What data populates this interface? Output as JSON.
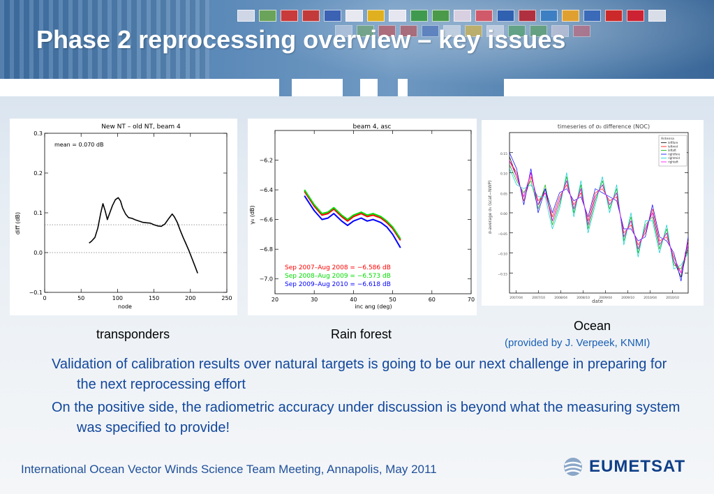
{
  "slide": {
    "title": "Phase 2 reprocessing overview – key issues",
    "flag_colors": [
      "#cfd6e6",
      "#6aa35a",
      "#c93a3a",
      "#c23a3a",
      "#3b62b3",
      "#e8e8f0",
      "#e0b020",
      "#e6e6f0",
      "#3f9a4f",
      "#4a9a4a",
      "#d8d0e0",
      "#d05a6a",
      "#3060b0",
      "#b03040",
      "#3d7fc2",
      "#e0a030",
      "#3b6ab8",
      "#cc2a2a",
      "#cc2233",
      "#d8dde8"
    ],
    "bullets": [
      "Validation of calibration results over natural targets is going to be our next challenge in preparing for the next reprocessing effort",
      "On the positive side, the radiometric accuracy under discussion is beyond what the measuring system was specified to provide!"
    ],
    "footer": "International Ocean Vector Winds Science Team Meeting, Annapolis, May 2011",
    "logo_text": "EUMETSAT",
    "colors": {
      "title": "#ffffff",
      "bullet_text": "#12479c",
      "footer_text": "#1f4f9a",
      "logo": "#0f3f88",
      "credit": "#1a5fb4"
    }
  },
  "captions": {
    "transponders": "transponders",
    "rainforest": "Rain forest",
    "ocean": "Ocean",
    "ocean_credit": "(provided by J. Verpeek, KNMI)"
  },
  "chart_data": [
    {
      "type": "line",
      "title": "New NT – old NT, beam 4",
      "xlabel": "node",
      "ylabel": "diff (dB)",
      "xlim": [
        0,
        250
      ],
      "ylim": [
        -0.1,
        0.3
      ],
      "xticks": [
        0,
        50,
        100,
        150,
        200,
        250
      ],
      "yticks": [
        -0.1,
        0.0,
        0.1,
        0.2,
        0.3
      ],
      "ytick_labels": [
        "−0.1",
        "0.0",
        "0.1",
        "0.2",
        "0.3"
      ],
      "annotation": "mean = 0.070 dB",
      "grid": false,
      "hlines": [
        {
          "y": 0.0,
          "style": "dotted"
        },
        {
          "y": 0.07,
          "style": "dotted"
        }
      ],
      "series": [
        {
          "color": "#000000",
          "x": [
            61,
            64,
            69,
            73,
            77,
            80,
            83,
            86,
            89,
            93,
            97,
            101,
            104,
            107,
            111,
            115,
            120,
            125,
            130,
            135,
            140,
            145,
            150,
            155,
            160,
            165,
            170,
            175,
            178,
            182,
            186,
            190,
            194,
            198,
            202,
            206,
            210
          ],
          "y": [
            0.024,
            0.028,
            0.038,
            0.062,
            0.1,
            0.123,
            0.105,
            0.083,
            0.098,
            0.118,
            0.133,
            0.138,
            0.13,
            0.112,
            0.097,
            0.088,
            0.086,
            0.082,
            0.079,
            0.076,
            0.075,
            0.074,
            0.07,
            0.067,
            0.066,
            0.072,
            0.085,
            0.097,
            0.09,
            0.076,
            0.056,
            0.038,
            0.022,
            0.005,
            -0.014,
            -0.033,
            -0.052
          ]
        }
      ]
    },
    {
      "type": "line",
      "title": "beam 4, asc",
      "xlabel": "inc ang (deg)",
      "ylabel": "γ₀ (dB)",
      "xlim": [
        20,
        70
      ],
      "ylim": [
        -7.1,
        -6.0
      ],
      "xticks": [
        20,
        30,
        40,
        50,
        60,
        70
      ],
      "yticks": [
        -7.0,
        -6.8,
        -6.6,
        -6.4,
        -6.2
      ],
      "ytick_labels": [
        "−7.0",
        "−6.8",
        "−6.6",
        "−6.4",
        "−6.2"
      ],
      "grid": false,
      "series": [
        {
          "name": "Sep 2007–Aug 2008 = −6.586 dB",
          "color": "#ff0000",
          "x": [
            27.5,
            30,
            32,
            33.5,
            35,
            37,
            38.5,
            40,
            42,
            43.5,
            45,
            47,
            48.5,
            50,
            52
          ],
          "y": [
            -6.41,
            -6.51,
            -6.57,
            -6.56,
            -6.53,
            -6.58,
            -6.61,
            -6.58,
            -6.56,
            -6.58,
            -6.57,
            -6.59,
            -6.62,
            -6.66,
            -6.74
          ]
        },
        {
          "name": "Sep 2008–Aug 2009 = −6.573 dB",
          "color": "#00dd00",
          "x": [
            27.5,
            30,
            32,
            33.5,
            35,
            37,
            38.5,
            40,
            42,
            43.5,
            45,
            47,
            48.5,
            50,
            52
          ],
          "y": [
            -6.4,
            -6.5,
            -6.56,
            -6.55,
            -6.52,
            -6.57,
            -6.6,
            -6.57,
            -6.55,
            -6.57,
            -6.56,
            -6.58,
            -6.61,
            -6.65,
            -6.73
          ]
        },
        {
          "name": "Sep 2009–Aug 2010 = −6.618 dB",
          "color": "#0000ff",
          "x": [
            27.5,
            30,
            32,
            33.5,
            35,
            37,
            38.5,
            40,
            42,
            43.5,
            45,
            47,
            48.5,
            50,
            52
          ],
          "y": [
            -6.44,
            -6.54,
            -6.6,
            -6.59,
            -6.56,
            -6.61,
            -6.64,
            -6.61,
            -6.59,
            -6.61,
            -6.6,
            -6.62,
            -6.65,
            -6.7,
            -6.79
          ]
        }
      ]
    },
    {
      "type": "line",
      "title": "timeseries of σ₀ difference (NOC)",
      "xlabel": "date",
      "ylabel": "σ-average σ₀ (scat−NWP)",
      "xlim": [
        0,
        100
      ],
      "ylim": [
        -0.2,
        0.2
      ],
      "yticks": [
        -0.15,
        -0.1,
        -0.05,
        0.0,
        0.05,
        0.1,
        0.15
      ],
      "ytick_labels": [
        "−0.15",
        "−0.10",
        "−0.05",
        "0.00",
        "0.05",
        "0.10",
        "0.15"
      ],
      "xtick_labels": [
        "2007/04",
        "2007/10",
        "2008/04",
        "2008/10",
        "2009/04",
        "2009/10",
        "2010/04",
        "2010/10"
      ],
      "legend_title": "Antenna",
      "legend_position": "top-right",
      "grid": false,
      "series": [
        {
          "name": "leftfore",
          "color": "#000000",
          "x": [
            0,
            4,
            8,
            12,
            16,
            20,
            24,
            28,
            32,
            36,
            40,
            44,
            48,
            52,
            56,
            60,
            64,
            68,
            72,
            76,
            80,
            84,
            88,
            92,
            96,
            100
          ],
          "y": [
            0.14,
            0.09,
            0.04,
            0.1,
            0.02,
            0.06,
            -0.02,
            0.03,
            0.08,
            0.01,
            0.06,
            -0.03,
            0.04,
            0.07,
            0.02,
            0.05,
            -0.06,
            -0.02,
            -0.09,
            -0.04,
            0.0,
            -0.08,
            -0.05,
            -0.12,
            -0.16,
            -0.08
          ]
        },
        {
          "name": "leftmid",
          "color": "#ff0000",
          "x": [
            0,
            4,
            8,
            12,
            16,
            20,
            24,
            28,
            32,
            36,
            40,
            44,
            48,
            52,
            56,
            60,
            64,
            68,
            72,
            76,
            80,
            84,
            88,
            92,
            96,
            100
          ],
          "y": [
            0.13,
            0.1,
            0.03,
            0.09,
            0.03,
            0.05,
            -0.01,
            0.04,
            0.07,
            0.02,
            0.05,
            -0.02,
            0.05,
            0.06,
            0.03,
            0.04,
            -0.05,
            -0.03,
            -0.08,
            -0.05,
            0.01,
            -0.07,
            -0.06,
            -0.11,
            -0.15,
            -0.07
          ]
        },
        {
          "name": "leftaft",
          "color": "#00aa00",
          "x": [
            0,
            4,
            8,
            12,
            16,
            20,
            24,
            28,
            32,
            36,
            40,
            44,
            48,
            52,
            56,
            60,
            64,
            68,
            72,
            76,
            80,
            84,
            88,
            92,
            96,
            100
          ],
          "y": [
            0.12,
            0.08,
            0.05,
            0.08,
            0.01,
            0.07,
            -0.03,
            0.02,
            0.09,
            0.0,
            0.07,
            -0.04,
            0.03,
            0.08,
            0.01,
            0.06,
            -0.07,
            -0.01,
            -0.1,
            -0.03,
            -0.01,
            -0.09,
            -0.04,
            -0.13,
            -0.14,
            -0.09
          ]
        },
        {
          "name": "rightfore",
          "color": "#0000ff",
          "x": [
            0,
            4,
            8,
            12,
            16,
            20,
            24,
            28,
            32,
            36,
            40,
            44,
            48,
            52,
            56,
            60,
            64,
            68,
            72,
            76,
            80,
            84,
            88,
            92,
            96,
            100
          ],
          "y": [
            0.15,
            0.11,
            0.02,
            0.11,
            0.0,
            0.06,
            0.0,
            0.05,
            0.06,
            0.03,
            0.04,
            -0.01,
            0.06,
            0.05,
            0.04,
            0.03,
            -0.04,
            -0.04,
            -0.07,
            -0.06,
            0.02,
            -0.06,
            -0.07,
            -0.1,
            -0.17,
            -0.06
          ]
        },
        {
          "name": "rightmid",
          "color": "#00cccc",
          "x": [
            0,
            4,
            8,
            12,
            16,
            20,
            24,
            28,
            32,
            36,
            40,
            44,
            48,
            52,
            56,
            60,
            64,
            68,
            72,
            76,
            80,
            84,
            88,
            92,
            96,
            100
          ],
          "y": [
            0.11,
            0.07,
            0.06,
            0.07,
            0.04,
            0.04,
            -0.04,
            0.01,
            0.1,
            -0.01,
            0.08,
            -0.05,
            0.02,
            0.09,
            0.0,
            0.07,
            -0.08,
            0.0,
            -0.11,
            -0.02,
            -0.02,
            -0.1,
            -0.03,
            -0.14,
            -0.13,
            -0.1
          ]
        },
        {
          "name": "rightaft",
          "color": "#ff00ff",
          "x": [
            0,
            4,
            8,
            12,
            16,
            20,
            24,
            28,
            32,
            36,
            40,
            44,
            48,
            52,
            56,
            60,
            64,
            68,
            72,
            76,
            80,
            84,
            88,
            92,
            96,
            100
          ],
          "y": [
            0.13,
            0.09,
            0.04,
            0.1,
            0.02,
            0.05,
            -0.02,
            0.03,
            0.08,
            0.01,
            0.06,
            -0.03,
            0.04,
            0.07,
            0.02,
            0.05,
            -0.06,
            -0.02,
            -0.09,
            -0.04,
            0.0,
            -0.08,
            -0.05,
            -0.12,
            -0.15,
            -0.08
          ]
        }
      ]
    }
  ]
}
